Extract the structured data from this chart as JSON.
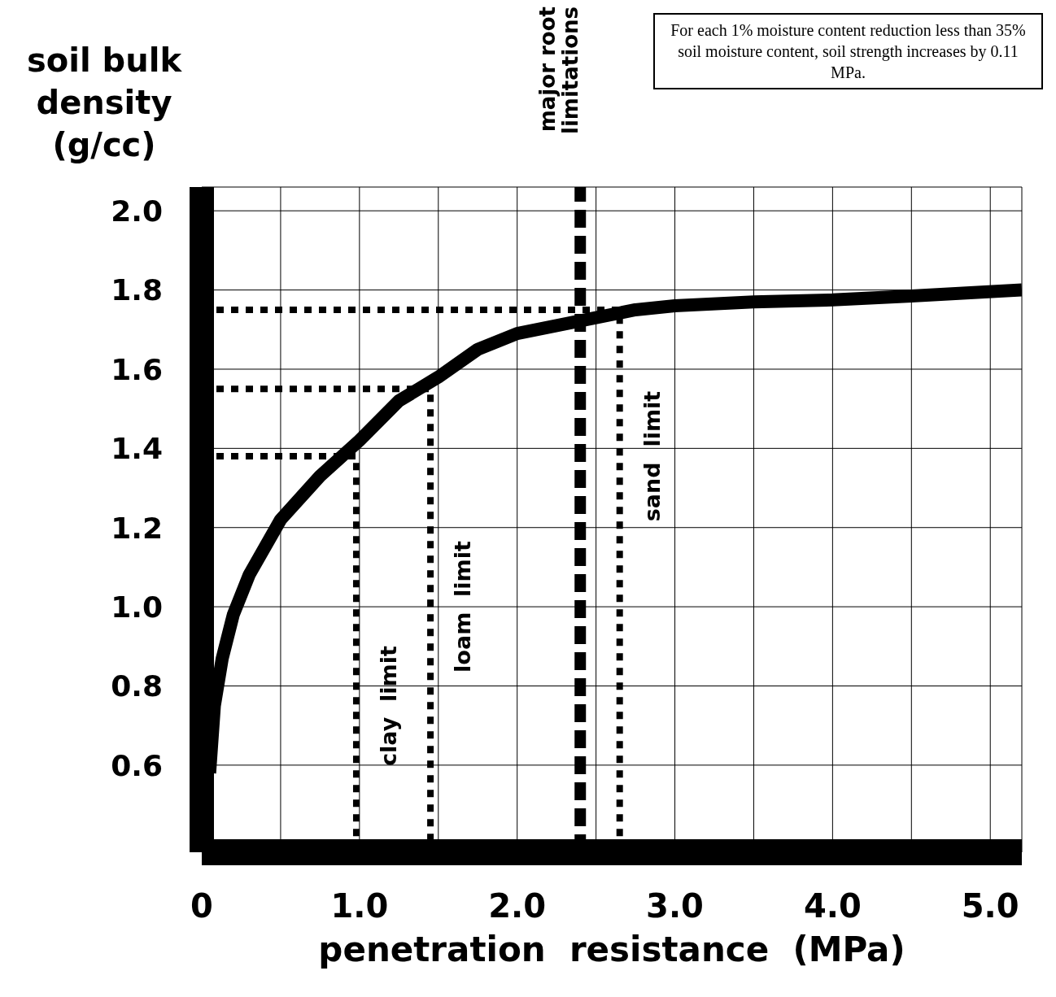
{
  "chart_data": {
    "type": "line",
    "xlabel": "penetration  resistance  (MPa)",
    "ylabel": "soil bulk density (g/cc)",
    "xlim": [
      0,
      5.2
    ],
    "ylim": [
      0.38,
      2.06
    ],
    "xticks": [
      0,
      {
        "value": 0.5,
        "label": null
      },
      {
        "value": 1,
        "label": "1.0"
      },
      {
        "value": 1.5,
        "label": null
      },
      {
        "value": 2,
        "label": "2.0"
      },
      {
        "value": 2.5,
        "label": null
      },
      {
        "value": 3,
        "label": "3.0"
      },
      {
        "value": 3.5,
        "label": null
      },
      {
        "value": 4,
        "label": "4.0"
      },
      {
        "value": 4.5,
        "label": null
      },
      {
        "value": 5,
        "label": "5.0"
      }
    ],
    "yticks": [
      0.6,
      0.8,
      {
        "value": 1,
        "label": "1.0"
      },
      1.2,
      1.4,
      1.6,
      1.8,
      {
        "value": 2,
        "label": "2.0"
      }
    ],
    "grid": true,
    "legend": false,
    "marker": "none",
    "series": [
      {
        "color": "#000000",
        "line_style": "solid",
        "x": [
          0.05,
          0.08,
          0.13,
          0.2,
          0.3,
          0.5,
          0.75,
          1.0,
          1.25,
          1.5,
          1.75,
          2.0,
          2.25,
          2.5,
          2.75,
          3.0,
          3.5,
          4.0,
          4.5,
          5.2
        ],
        "values": [
          0.58,
          0.75,
          0.87,
          0.98,
          1.08,
          1.22,
          1.33,
          1.42,
          1.52,
          1.58,
          1.65,
          1.69,
          1.71,
          1.73,
          1.75,
          1.76,
          1.77,
          1.775,
          1.785,
          1.8
        ]
      },
      {
        "color": "#000000",
        "line_style": "dotted",
        "x": [
          0,
          0.98,
          0.98
        ],
        "values": [
          1.38,
          1.38,
          0.38
        ]
      },
      {
        "color": "#000000",
        "line_style": "dotted",
        "x": [
          0,
          1.45,
          1.45
        ],
        "values": [
          1.55,
          1.55,
          0.38
        ]
      },
      {
        "color": "#000000",
        "line_style": "dotted",
        "x": [
          0,
          2.65,
          2.65
        ],
        "values": [
          1.75,
          1.75,
          0.38
        ]
      }
    ],
    "ref_lines": [
      {
        "axis": "x",
        "value": 2.4,
        "label": "major root limitations",
        "line_style": "dashed",
        "color": "#000000"
      }
    ],
    "annotations": [
      {
        "text": "clay limit",
        "x": 0.98,
        "y": 0.75
      },
      {
        "text": "loam limit",
        "x": 1.45,
        "y": 1.0
      },
      {
        "text": "sand limit",
        "x": 2.65,
        "y": 1.38
      },
      "For each 1% moisture content reduction less than 35% soil moisture content, soil strength increases by 0.11 MPa."
    ]
  }
}
